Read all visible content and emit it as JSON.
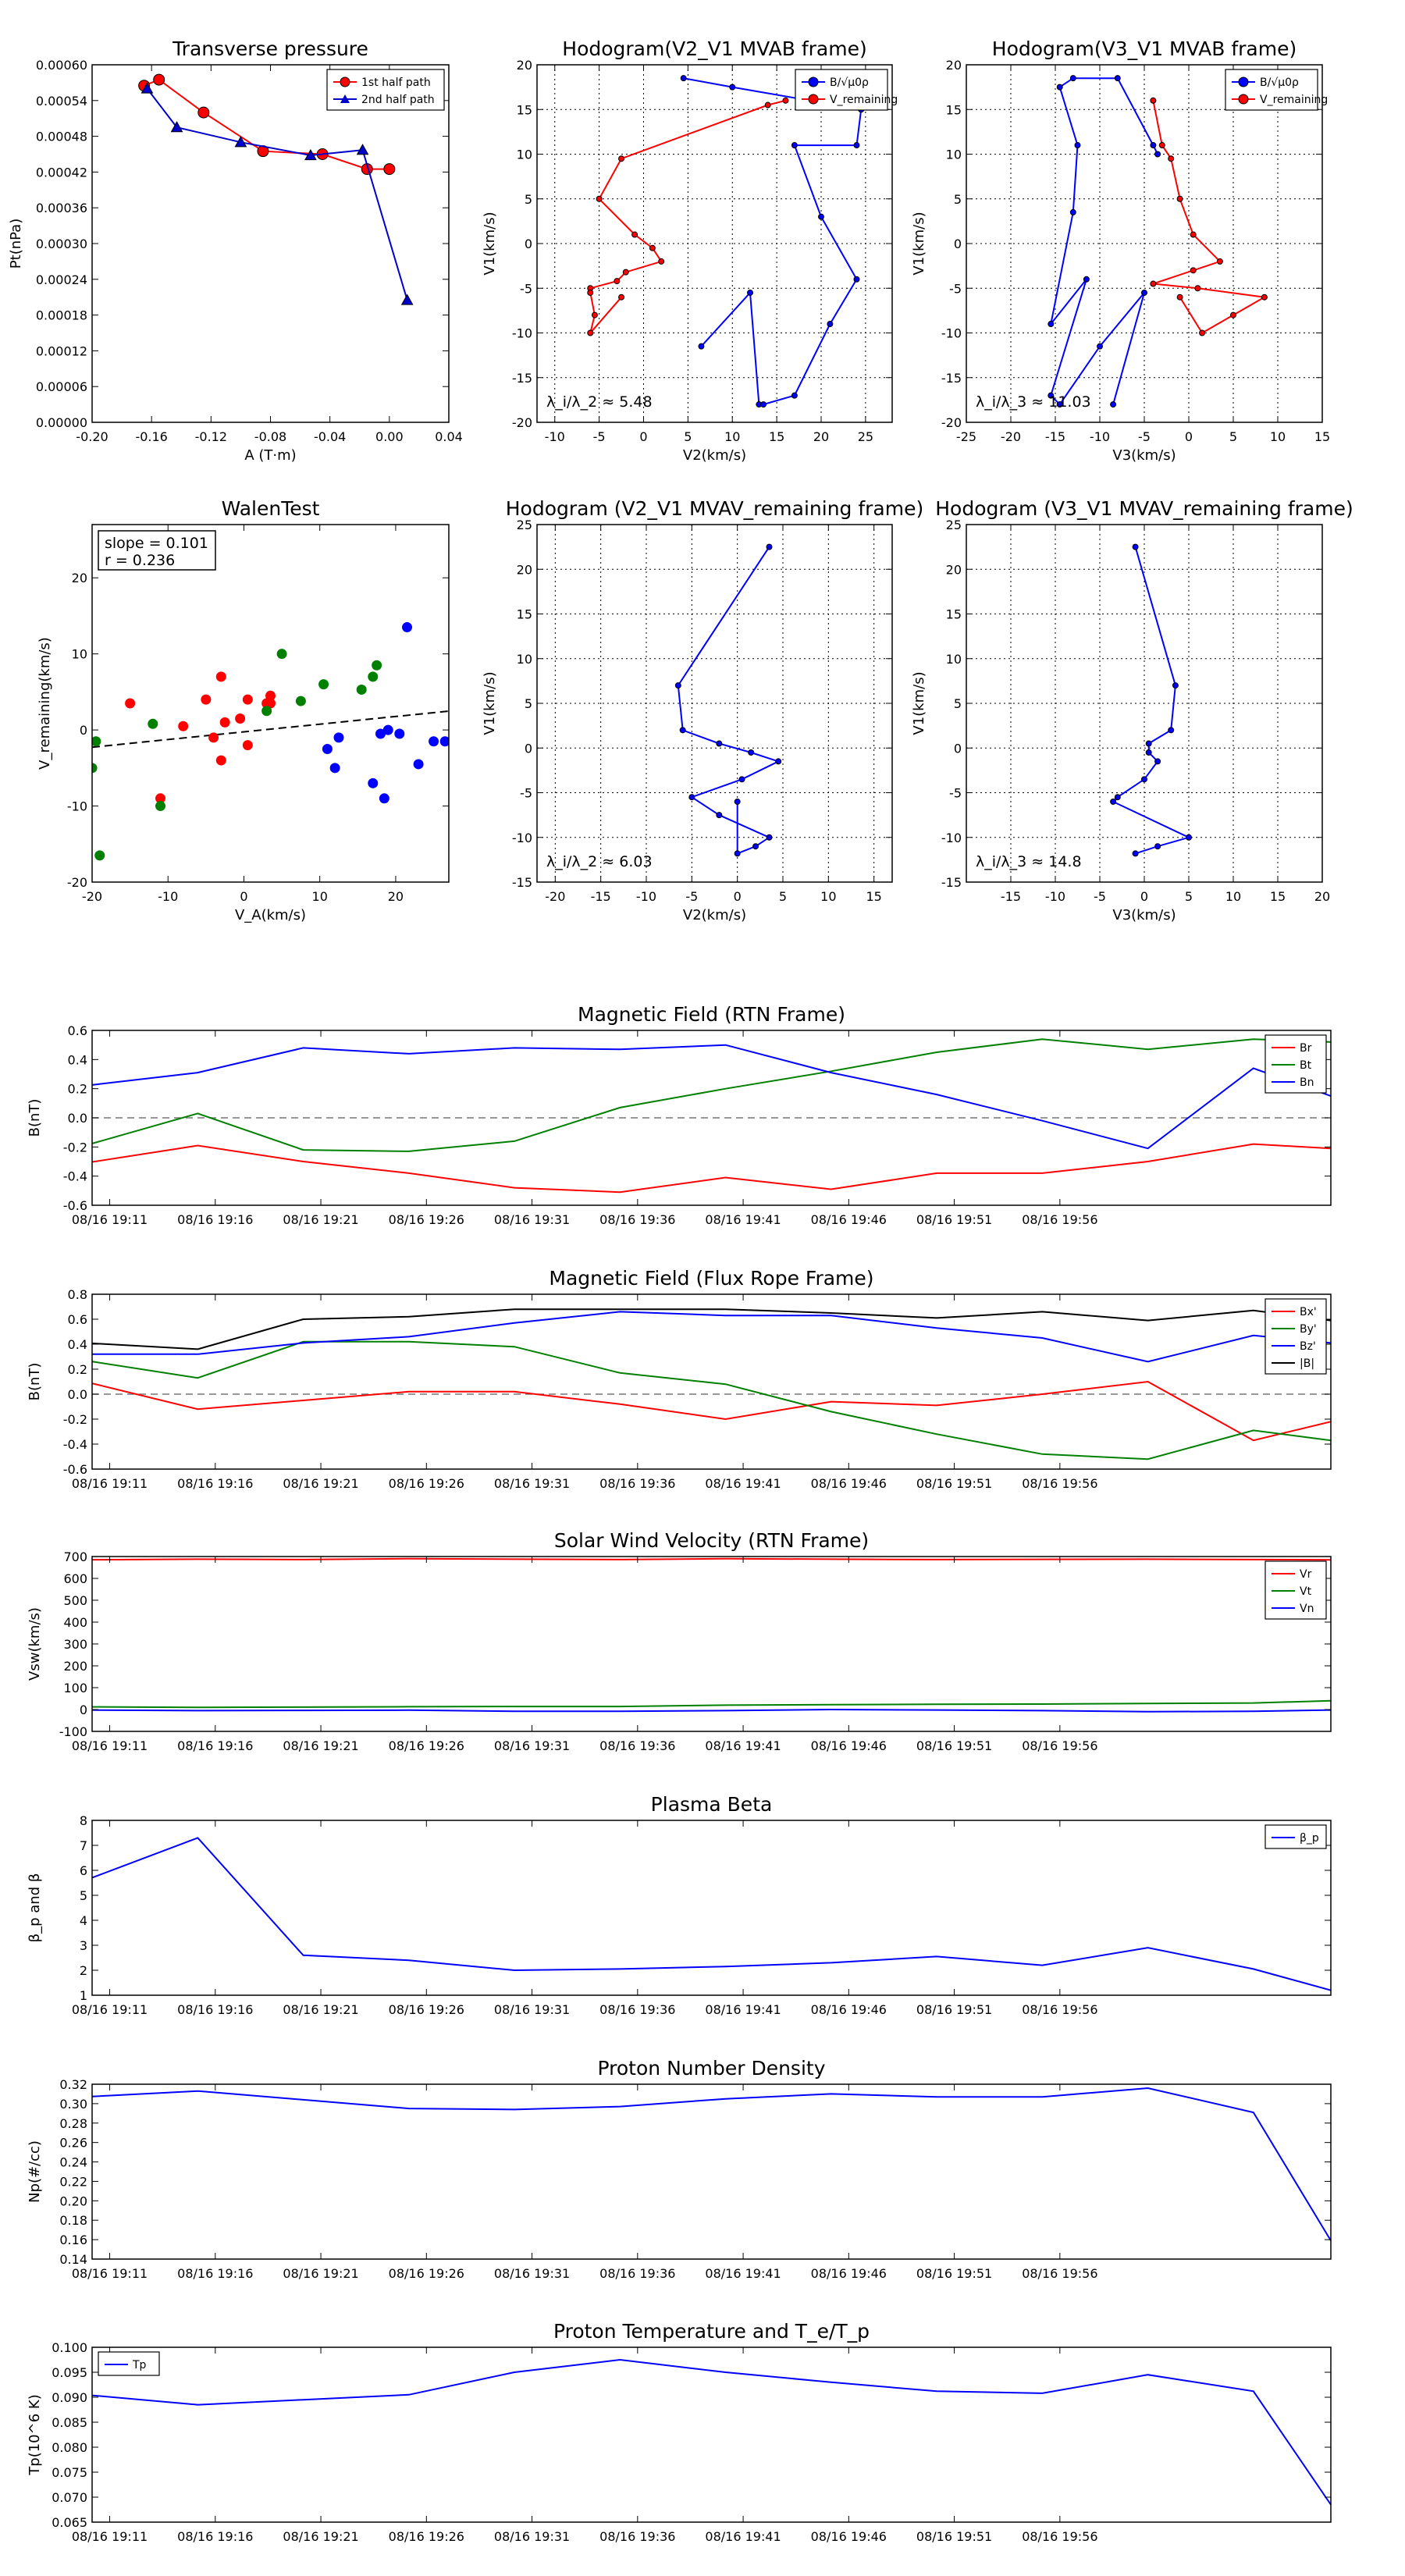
{
  "chart_data": [
    {
      "id": "tp",
      "type": "scatter",
      "title": "Transverse pressure",
      "xlabel": "A (T·m)",
      "ylabel": "Pt(nPa)",
      "xlim": [
        -0.2,
        0.04
      ],
      "ylim": [
        0,
        0.0006
      ],
      "xticks": [
        "-0.20",
        "-0.16",
        "-0.12",
        "-0.08",
        "-0.04",
        "0.00",
        "0.04"
      ],
      "yticks": [
        "0.00000",
        "0.00006",
        "0.00012",
        "0.00018",
        "0.00024",
        "0.00030",
        "0.00036",
        "0.00042",
        "0.00048",
        "0.00054",
        "0.00060"
      ],
      "grid": false,
      "legend": "top-right",
      "series": [
        {
          "name": "1st half path",
          "color": "#ff0000",
          "marker": "circle",
          "x": [
            -0.165,
            -0.155,
            -0.125,
            -0.085,
            -0.045,
            -0.015,
            0.0
          ],
          "y": [
            0.000565,
            0.000575,
            0.00052,
            0.000455,
            0.00045,
            0.000425,
            0.000425
          ]
        },
        {
          "name": "2nd half path",
          "color": "#0000cc",
          "marker": "triangle",
          "x": [
            -0.163,
            -0.143,
            -0.1,
            -0.053,
            -0.018,
            0.012
          ],
          "y": [
            0.00056,
            0.000495,
            0.00047,
            0.000448,
            0.000457,
            0.000205
          ]
        }
      ]
    },
    {
      "id": "h1",
      "type": "line",
      "title": "Hodogram(V2_V1 MVAB frame)",
      "xlabel": "V2(km/s)",
      "ylabel": "V1(km/s)",
      "xlim": [
        -12,
        28
      ],
      "ylim": [
        -20,
        20
      ],
      "xticks": [
        "-10",
        "-5",
        "0",
        "5",
        "10",
        "15",
        "20",
        "25"
      ],
      "yticks": [
        "-20",
        "-15",
        "-10",
        "-5",
        "0",
        "5",
        "10",
        "15",
        "20"
      ],
      "grid": true,
      "legend": "top-right",
      "annotation": "λ_i/λ_2 ≈ 5.48",
      "series": [
        {
          "name": "B/√μ0ρ",
          "color": "#0000ff",
          "x": [
            6.5,
            12,
            13,
            13.5,
            17,
            21,
            24,
            20,
            17,
            24,
            24.5,
            10,
            4.5
          ],
          "y": [
            -11.5,
            -5.5,
            -18,
            -18,
            -17,
            -9,
            -4,
            3,
            11,
            11,
            15,
            17.5,
            18.5
          ]
        },
        {
          "name": "V_remaining",
          "color": "#ff0000",
          "x": [
            16,
            14,
            -2.5,
            -5,
            -1,
            1,
            2,
            -2,
            -3,
            -6,
            -6,
            -5.5,
            -6,
            -2.5
          ],
          "y": [
            16,
            15.5,
            9.5,
            5,
            1,
            -0.5,
            -2,
            -3.2,
            -4.2,
            -5,
            -5.5,
            -8,
            -10,
            -6
          ]
        }
      ]
    },
    {
      "id": "h2",
      "type": "line",
      "title": "Hodogram(V3_V1 MVAB frame)",
      "xlabel": "V3(km/s)",
      "ylabel": "V1(km/s)",
      "xlim": [
        -25,
        15
      ],
      "ylim": [
        -20,
        20
      ],
      "xticks": [
        "-25",
        "-20",
        "-15",
        "-10",
        "-5",
        "0",
        "5",
        "10",
        "15"
      ],
      "yticks": [
        "-20",
        "-15",
        "-10",
        "-5",
        "0",
        "5",
        "10",
        "15",
        "20"
      ],
      "grid": true,
      "legend": "top-right",
      "annotation": "λ_i/λ_3 ≈ 11.03",
      "series": [
        {
          "name": "B/√μ0ρ",
          "color": "#0000ff",
          "x": [
            -8.5,
            -5,
            -10,
            -14.5,
            -15.5,
            -11.5,
            -15.5,
            -13,
            -12.5,
            -14.5,
            -13,
            -8,
            -4,
            -3.5
          ],
          "y": [
            -18,
            -5.5,
            -11.5,
            -18,
            -17,
            -4,
            -9,
            3.5,
            11,
            17.5,
            18.5,
            18.5,
            11,
            10
          ]
        },
        {
          "name": "V_remaining",
          "color": "#ff0000",
          "x": [
            -4,
            -3,
            -2,
            -1,
            0.5,
            3.5,
            0.5,
            -4,
            1,
            8.5,
            5,
            1.5,
            -1
          ],
          "y": [
            16,
            11,
            9.5,
            5,
            1,
            -2,
            -3,
            -4.5,
            -5,
            -6,
            -8,
            -10,
            -6
          ]
        }
      ]
    },
    {
      "id": "walen",
      "type": "scatter",
      "title": "WalenTest",
      "xlabel": "V_A(km/s)",
      "ylabel": "V_remaining(km/s)",
      "xlim": [
        -20,
        27
      ],
      "ylim": [
        -20,
        27
      ],
      "xticks": [
        "-20",
        "-10",
        "0",
        "10",
        "20"
      ],
      "yticks": [
        "-20",
        "-10",
        "0",
        "10",
        "20"
      ],
      "grid": false,
      "annotation": [
        "slope = 0.101",
        "r = 0.236"
      ],
      "fit": {
        "slope": 0.101,
        "intercept": -0.25
      },
      "series": [
        {
          "name": "red",
          "color": "#ff0000",
          "x": [
            -15,
            -11,
            -8,
            -5,
            -4,
            -3,
            -3,
            -2.5,
            -0.5,
            0.5,
            0.5,
            3,
            3.5,
            3.5
          ],
          "y": [
            3.5,
            -9,
            0.5,
            4,
            -1,
            7,
            -4,
            1,
            1.5,
            4,
            -2,
            3.5,
            4.5,
            3.5
          ]
        },
        {
          "name": "green",
          "color": "#008000",
          "x": [
            -20,
            -19.5,
            -19,
            -12,
            -11,
            3,
            5,
            7.5,
            10.5,
            15.5,
            17,
            17.5
          ],
          "y": [
            -5,
            -1.5,
            -16.5,
            0.8,
            -10,
            2.5,
            10,
            3.8,
            6,
            5.3,
            7,
            8.5
          ]
        },
        {
          "name": "blue",
          "color": "#0000ff",
          "x": [
            11,
            12,
            12.5,
            17,
            18,
            18.5,
            19,
            20.5,
            21.5,
            23,
            25,
            26.5
          ],
          "y": [
            -2.5,
            -5,
            -1,
            -7,
            -0.5,
            -9,
            0,
            -0.5,
            13.5,
            -4.5,
            -1.5,
            -1.5
          ]
        }
      ]
    },
    {
      "id": "h3",
      "type": "line",
      "title": "Hodogram (V2_V1 MVAV_remaining frame)",
      "xlabel": "V2(km/s)",
      "ylabel": "V1(km/s)",
      "xlim": [
        -22,
        17
      ],
      "ylim": [
        -15,
        25
      ],
      "xticks": [
        "-20",
        "-15",
        "-10",
        "-5",
        "0",
        "5",
        "10",
        "15"
      ],
      "yticks": [
        "-15",
        "-10",
        "-5",
        "0",
        "5",
        "10",
        "15",
        "20",
        "25"
      ],
      "grid": true,
      "annotation": "λ_i/λ_2 ≈ 6.03",
      "series": [
        {
          "name": "",
          "color": "#0000ff",
          "x": [
            3.5,
            -6.5,
            -6,
            -2,
            1.5,
            4.5,
            0.5,
            -5,
            -2,
            3.5,
            2,
            0,
            0
          ],
          "y": [
            22.5,
            7,
            2,
            0.5,
            -0.5,
            -1.5,
            -3.5,
            -5.5,
            -7.5,
            -10,
            -11,
            -11.8,
            -6
          ]
        }
      ]
    },
    {
      "id": "h4",
      "type": "line",
      "title": "Hodogram (V3_V1 MVAV_remaining frame)",
      "xlabel": "V3(km/s)",
      "ylabel": "V1(km/s)",
      "xlim": [
        -20,
        20
      ],
      "ylim": [
        -15,
        25
      ],
      "xticks": [
        "-15",
        "-10",
        "-5",
        "0",
        "5",
        "10",
        "15",
        "20"
      ],
      "yticks": [
        "-15",
        "-10",
        "-5",
        "0",
        "5",
        "10",
        "15",
        "20",
        "25"
      ],
      "grid": true,
      "annotation": "λ_i/λ_3 ≈ 14.8",
      "series": [
        {
          "name": "",
          "color": "#0000ff",
          "x": [
            -1,
            3.5,
            3,
            0.5,
            0.5,
            1.5,
            0,
            -3,
            -3.5,
            5,
            1.5,
            -1
          ],
          "y": [
            22.5,
            7,
            2,
            0.5,
            -0.5,
            -1.5,
            -3.5,
            -5.5,
            -6,
            -10,
            -11,
            -11.8
          ]
        }
      ]
    },
    {
      "id": "bfield",
      "type": "line",
      "title": "Magnetic Field (RTN Frame)",
      "ylabel": "B(nT)",
      "ylim": [
        -0.6,
        0.6
      ],
      "yticks": [
        "-0.6",
        "-0.4",
        "-0.2",
        "0.0",
        "0.2",
        "0.4",
        "0.6"
      ],
      "legend": "top-right",
      "zero_line": true,
      "series": [
        {
          "name": "Br",
          "color": "#ff0000",
          "values": [
            -0.31,
            -0.19,
            -0.3,
            -0.38,
            -0.48,
            -0.51,
            -0.41,
            -0.49,
            -0.38,
            -0.38,
            -0.3,
            -0.18,
            -0.21
          ]
        },
        {
          "name": "Bt",
          "color": "#008000",
          "values": [
            -0.19,
            0.03,
            -0.22,
            -0.23,
            -0.16,
            0.07,
            0.2,
            0.32,
            0.45,
            0.54,
            0.47,
            0.54,
            0.52
          ]
        },
        {
          "name": "Bn",
          "color": "#0000ff",
          "values": [
            0.22,
            0.31,
            0.48,
            0.44,
            0.48,
            0.47,
            0.5,
            0.31,
            0.16,
            -0.02,
            -0.21,
            0.34,
            0.15
          ]
        }
      ]
    },
    {
      "id": "fluxrope",
      "type": "line",
      "title": "Magnetic Field (Flux Rope Frame)",
      "ylabel": "B(nT)",
      "ylim": [
        -0.6,
        0.8
      ],
      "yticks": [
        "-0.6",
        "-0.4",
        "-0.2",
        "0.0",
        "0.2",
        "0.4",
        "0.6",
        "0.8"
      ],
      "legend": "top-right",
      "zero_line": true,
      "series": [
        {
          "name": "Bx'",
          "color": "#ff0000",
          "values": [
            0.1,
            -0.12,
            -0.05,
            0.02,
            0.02,
            -0.08,
            -0.2,
            -0.06,
            -0.09,
            0.0,
            0.1,
            -0.37,
            -0.22
          ]
        },
        {
          "name": "By'",
          "color": "#008000",
          "values": [
            0.27,
            0.13,
            0.42,
            0.42,
            0.38,
            0.17,
            0.08,
            -0.14,
            -0.32,
            -0.48,
            -0.52,
            -0.29,
            -0.37
          ]
        },
        {
          "name": "Bz'",
          "color": "#0000ff",
          "values": [
            0.32,
            0.32,
            0.41,
            0.46,
            0.57,
            0.66,
            0.63,
            0.63,
            0.53,
            0.45,
            0.26,
            0.47,
            0.41
          ]
        },
        {
          "name": "|B|",
          "color": "#000000",
          "values": [
            0.41,
            0.36,
            0.6,
            0.62,
            0.68,
            0.68,
            0.68,
            0.65,
            0.61,
            0.66,
            0.59,
            0.67,
            0.59
          ]
        }
      ]
    },
    {
      "id": "vsw",
      "type": "line",
      "title": "Solar Wind Velocity (RTN Frame)",
      "ylabel": "Vsw(km/s)",
      "ylim": [
        -100,
        700
      ],
      "yticks": [
        "-100",
        "0",
        "100",
        "200",
        "300",
        "400",
        "500",
        "600",
        "700"
      ],
      "legend": "top-right",
      "series": [
        {
          "name": "Vr",
          "color": "#ff0000",
          "values": [
            685,
            688,
            686,
            690,
            688,
            686,
            690,
            688,
            686,
            687,
            688,
            686,
            685
          ]
        },
        {
          "name": "Vt",
          "color": "#008000",
          "values": [
            12,
            10,
            11,
            13,
            14,
            14,
            20,
            22,
            24,
            25,
            28,
            30,
            40
          ]
        },
        {
          "name": "Vn",
          "color": "#0000ff",
          "values": [
            -2,
            -5,
            -4,
            -3,
            -8,
            -8,
            -5,
            0,
            -2,
            -5,
            -10,
            -8,
            -2
          ]
        }
      ]
    },
    {
      "id": "beta",
      "type": "line",
      "title": "Plasma Beta",
      "ylabel": "β_p and β",
      "ylim": [
        1,
        8
      ],
      "yticks": [
        "1",
        "2",
        "3",
        "4",
        "5",
        "6",
        "7",
        "8"
      ],
      "legend": "top-right",
      "series": [
        {
          "name": "β_p",
          "color": "#0000ff",
          "values": [
            5.6,
            7.3,
            2.6,
            2.4,
            2.0,
            2.05,
            2.15,
            2.3,
            2.55,
            2.2,
            2.9,
            2.05,
            1.2
          ]
        }
      ]
    },
    {
      "id": "density",
      "type": "line",
      "title": "Proton Number Density",
      "ylabel": "Np(#/cc)",
      "ylim": [
        0.14,
        0.32
      ],
      "yticks": [
        "0.14",
        "0.16",
        "0.18",
        "0.20",
        "0.22",
        "0.24",
        "0.26",
        "0.28",
        "0.30",
        "0.32"
      ],
      "series": [
        {
          "name": "",
          "color": "#0000ff",
          "values": [
            0.307,
            0.313,
            0.304,
            0.295,
            0.294,
            0.297,
            0.305,
            0.31,
            0.307,
            0.307,
            0.316,
            0.291,
            0.159
          ]
        }
      ]
    },
    {
      "id": "temp",
      "type": "line",
      "title": "Proton Temperature and T_e/T_p",
      "ylabel": "Tp(10^6 K)",
      "ylim": [
        0.065,
        0.1
      ],
      "yticks": [
        "0.065",
        "0.070",
        "0.075",
        "0.080",
        "0.085",
        "0.090",
        "0.095",
        "0.100"
      ],
      "legend": "top-left",
      "series": [
        {
          "name": "Tp",
          "color": "#0000ff",
          "values": [
            0.0905,
            0.0885,
            0.0895,
            0.0905,
            0.095,
            0.0975,
            0.095,
            0.093,
            0.0912,
            0.0908,
            0.0945,
            0.0912,
            0.0685
          ]
        }
      ]
    }
  ],
  "time_axis": {
    "x": [
      -0.02,
      0.3,
      0.6,
      0.9,
      1.2,
      1.5,
      1.8,
      2.1,
      2.4,
      2.7,
      3.0,
      3.3,
      3.52
    ],
    "xlim": [
      0,
      3.52
    ],
    "ticks": [
      "08/16 19:11",
      "08/16 19:16",
      "08/16 19:21",
      "08/16 19:26",
      "08/16 19:31",
      "08/16 19:36",
      "08/16 19:41",
      "08/16 19:46",
      "08/16 19:51",
      "08/16 19:56"
    ],
    "tick_values": [
      0.05,
      0.35,
      0.65,
      0.95,
      1.25,
      1.55,
      1.85,
      2.15,
      2.45,
      2.75
    ]
  }
}
